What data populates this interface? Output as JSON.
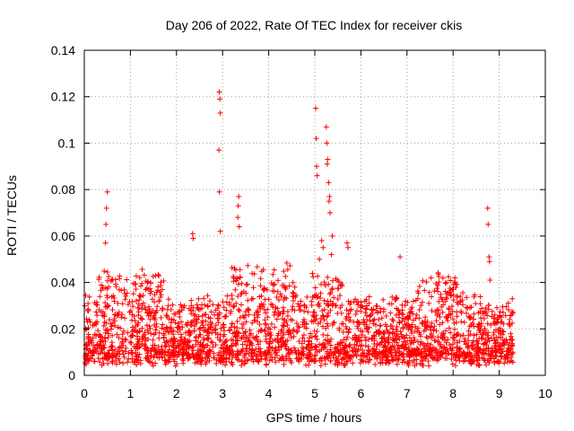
{
  "chart_data": {
    "type": "scatter",
    "title": "Day 206 of 2022, Rate Of TEC Index for receiver ckis",
    "xlabel": "GPS time / hours",
    "ylabel": "ROTI / TECUs",
    "xlim": [
      0,
      10
    ],
    "ylim": [
      0,
      0.14
    ],
    "x_ticks": [
      0,
      1,
      2,
      3,
      4,
      5,
      6,
      7,
      8,
      9,
      10
    ],
    "x_tick_labels": [
      "0",
      "1",
      "2",
      "3",
      "4",
      "5",
      "6",
      "7",
      "8",
      "9",
      "10"
    ],
    "y_ticks": [
      0,
      0.02,
      0.04,
      0.06,
      0.08,
      0.1,
      0.12,
      0.14
    ],
    "y_tick_labels": [
      "0",
      "0.02",
      "0.04",
      "0.06",
      "0.08",
      "0.1",
      "0.12",
      "0.14"
    ],
    "grid": true,
    "marker": "+",
    "color": "#ff0000",
    "series": [
      {
        "name": "ROTI",
        "x_range": [
          0,
          9.3
        ],
        "outliers": [
          [
            0.5,
            0.079
          ],
          [
            0.48,
            0.072
          ],
          [
            0.47,
            0.065
          ],
          [
            0.46,
            0.057
          ],
          [
            2.35,
            0.061
          ],
          [
            2.36,
            0.059
          ],
          [
            2.93,
            0.122
          ],
          [
            2.94,
            0.119
          ],
          [
            2.95,
            0.113
          ],
          [
            2.92,
            0.097
          ],
          [
            2.93,
            0.079
          ],
          [
            2.95,
            0.062
          ],
          [
            3.35,
            0.077
          ],
          [
            3.34,
            0.073
          ],
          [
            3.33,
            0.068
          ],
          [
            3.36,
            0.064
          ],
          [
            5.02,
            0.115
          ],
          [
            5.03,
            0.102
          ],
          [
            5.04,
            0.09
          ],
          [
            5.05,
            0.086
          ],
          [
            5.25,
            0.107
          ],
          [
            5.26,
            0.1
          ],
          [
            5.28,
            0.093
          ],
          [
            5.27,
            0.091
          ],
          [
            5.3,
            0.083
          ],
          [
            5.32,
            0.077
          ],
          [
            5.31,
            0.075
          ],
          [
            5.33,
            0.07
          ],
          [
            5.15,
            0.058
          ],
          [
            5.18,
            0.055
          ],
          [
            5.38,
            0.06
          ],
          [
            5.36,
            0.052
          ],
          [
            5.7,
            0.057
          ],
          [
            5.72,
            0.055
          ],
          [
            5.1,
            0.05
          ],
          [
            6.85,
            0.051
          ],
          [
            8.75,
            0.072
          ],
          [
            8.76,
            0.065
          ],
          [
            8.78,
            0.051
          ],
          [
            8.79,
            0.049
          ],
          [
            8.8,
            0.041
          ]
        ]
      }
    ]
  }
}
